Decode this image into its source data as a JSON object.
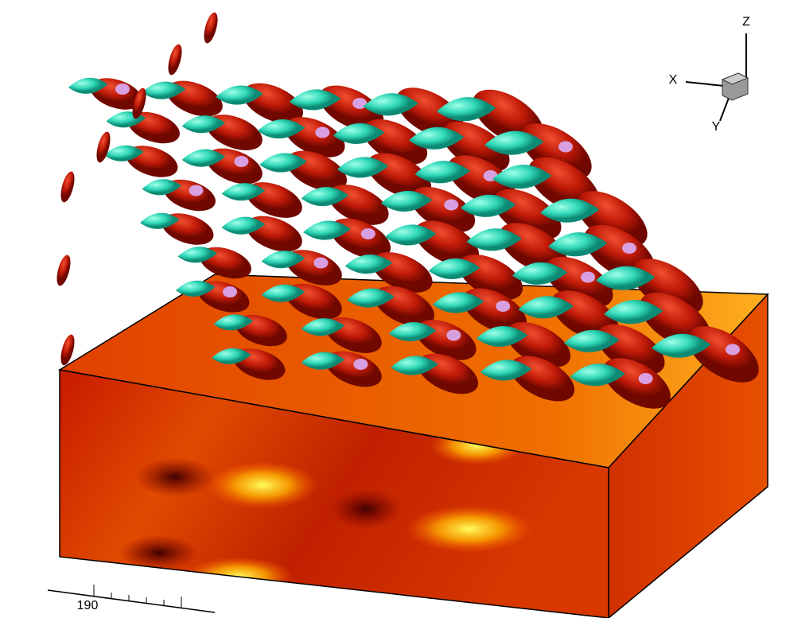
{
  "axes_triad": {
    "z": "Z",
    "x": "X",
    "y": "Y"
  },
  "axis_ruler": {
    "tick_label": "190"
  }
}
